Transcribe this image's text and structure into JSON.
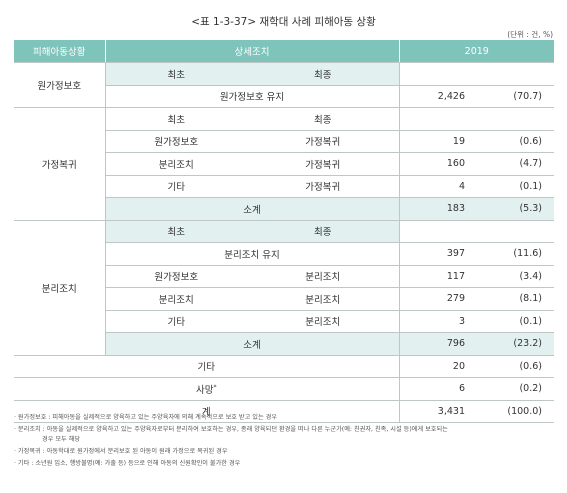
{
  "title": "<표 1-3-37> 재학대 사례 피해아동 상황",
  "unit": "(단위 : 건, %)",
  "headers": {
    "category": "피해아동상황",
    "detail": "상세조치",
    "year": "2019"
  },
  "labels": {
    "first": "최초",
    "final": "최종"
  },
  "sections": {
    "home": {
      "name": "원가정보호",
      "row": {
        "label": "원가정보호 유지",
        "count": "2,426",
        "pct": "(70.7)"
      }
    },
    "return": {
      "name": "가정복귀",
      "rows": [
        {
          "first": "원가정보호",
          "final": "가정복귀",
          "count": "19",
          "pct": "(0.6)"
        },
        {
          "first": "분리조치",
          "final": "가정복귀",
          "count": "160",
          "pct": "(4.7)"
        },
        {
          "first": "기타",
          "final": "가정복귀",
          "count": "4",
          "pct": "(0.1)"
        }
      ],
      "subtotal": {
        "label": "소계",
        "count": "183",
        "pct": "(5.3)"
      }
    },
    "separation": {
      "name": "분리조치",
      "keep": {
        "label": "분리조치 유지",
        "count": "397",
        "pct": "(11.6)"
      },
      "rows": [
        {
          "first": "원가정보호",
          "final": "분리조치",
          "count": "117",
          "pct": "(3.4)"
        },
        {
          "first": "분리조치",
          "final": "분리조치",
          "count": "279",
          "pct": "(8.1)"
        },
        {
          "first": "기타",
          "final": "분리조치",
          "count": "3",
          "pct": "(0.1)"
        }
      ],
      "subtotal": {
        "label": "소계",
        "count": "796",
        "pct": "(23.2)"
      }
    },
    "other": {
      "label": "기타",
      "count": "20",
      "pct": "(0.6)"
    },
    "death": {
      "label": "사망",
      "sup": "*",
      "count": "6",
      "pct": "(0.2)"
    },
    "total": {
      "label": "계",
      "count": "3,431",
      "pct": "(100.0)"
    }
  },
  "notes": [
    "· 원가정보호 : 피해아동을 실제적으로 양육하고 있는 주양육자에 의해 계속적으로 보호 받고 있는 경우",
    "· 분리조치 : 아동을 실제적으로 양육하고 있는 주양육자로부터 분리하여 보호하는 경우, 종래 양육되던 환경을 떠나 다른 누군가(예: 친권자, 친족, 시설 등)에게 보호되는",
    "경우 모두 해당",
    "· 가정복귀 : 아동학대로 원가정에서 분리보호 된 아동이 원래 가정으로 복귀된 경우",
    "· 기타 : 소년원 입소, 행방불명(예: 가출 등) 등으로 인해 아동의 신원확인이 불가한 경우"
  ]
}
